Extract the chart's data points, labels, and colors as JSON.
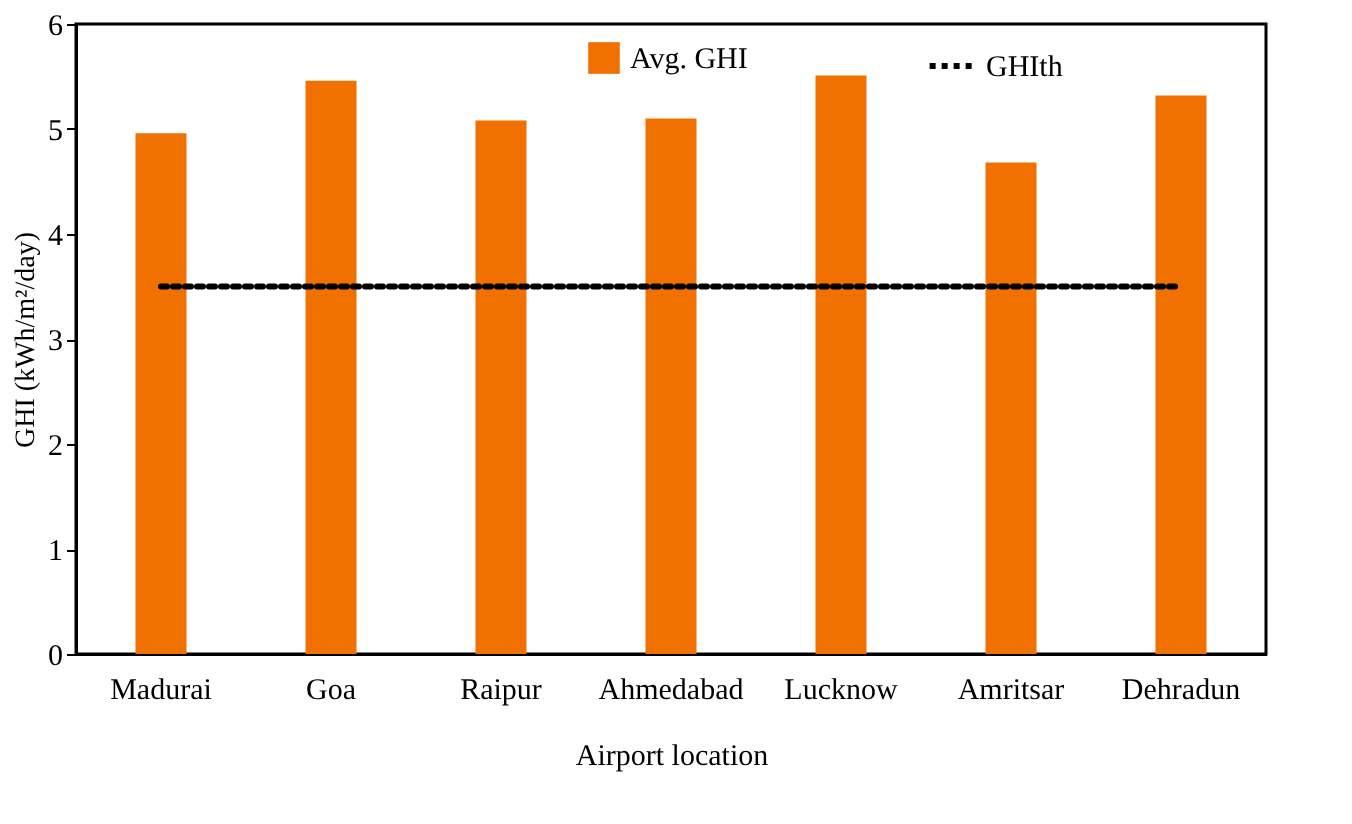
{
  "chart_data": {
    "type": "bar",
    "xlabel": "Airport location",
    "ylabel": "GHI (kWh/m²/day)",
    "categories": [
      "Madurai",
      "Goa",
      "Raipur",
      "Ahmedabad",
      "Lucknow",
      "Amritsar",
      "Dehradun"
    ],
    "series": [
      {
        "name": "Avg. GHI",
        "color": "#f07100",
        "values": [
          4.96,
          5.46,
          5.08,
          5.1,
          5.51,
          4.68,
          5.32
        ]
      },
      {
        "name": "GHIth",
        "type": "line",
        "line_style": "dotted",
        "color": "#000000",
        "values": [
          3.5,
          3.5,
          3.5,
          3.5,
          3.5,
          3.5,
          3.5
        ]
      }
    ],
    "ylim": [
      0,
      6
    ],
    "yticks": [
      0,
      1,
      2,
      3,
      4,
      5,
      6
    ],
    "grid": false,
    "legend": "top right"
  }
}
